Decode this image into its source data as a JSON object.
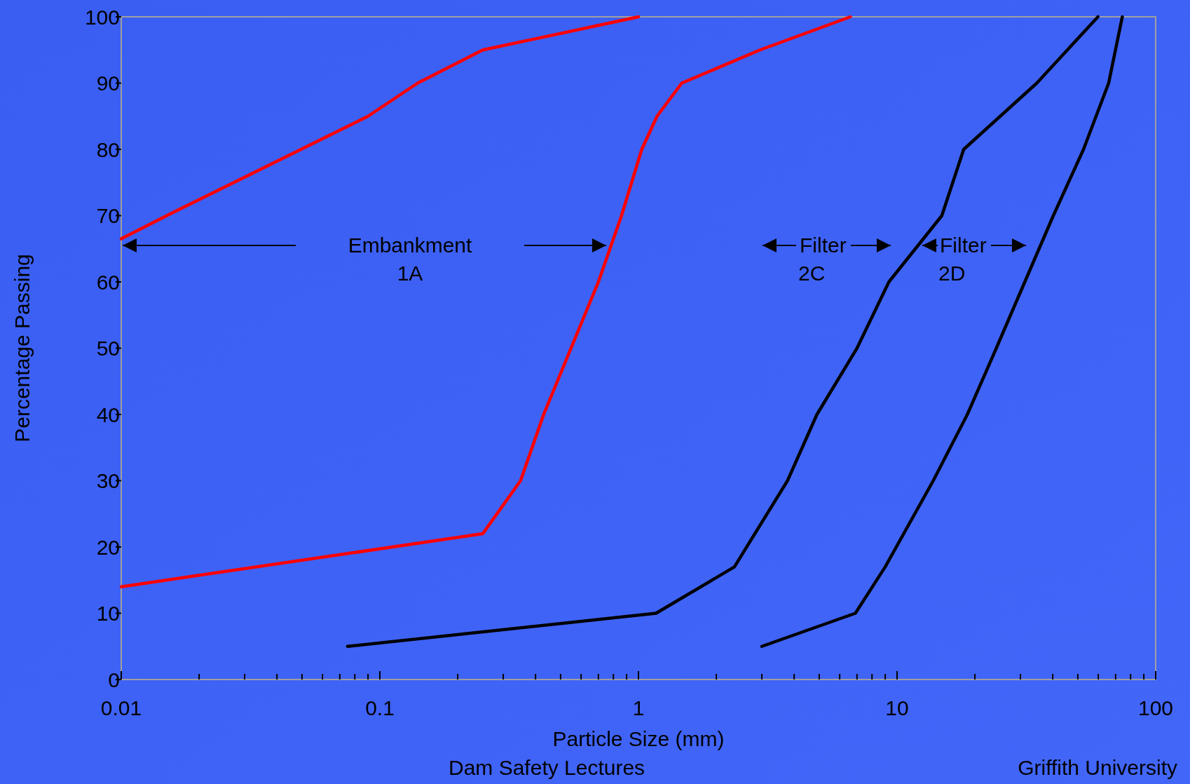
{
  "chart_data": {
    "type": "line",
    "xlabel": "Particle Size (mm)",
    "ylabel": "Percentage Passing",
    "log": "x",
    "xlim": [
      0.01,
      100
    ],
    "ylim": [
      0,
      100
    ],
    "xticks": [
      0.01,
      {
        "value": 0.02,
        "label": null
      },
      {
        "value": 0.03,
        "label": null
      },
      {
        "value": 0.04,
        "label": null
      },
      {
        "value": 0.05,
        "label": null
      },
      {
        "value": 0.06,
        "label": null
      },
      {
        "value": 0.07,
        "label": null
      },
      {
        "value": 0.08,
        "label": null
      },
      {
        "value": 0.09,
        "label": null
      },
      0.1,
      {
        "value": 0.2,
        "label": null
      },
      {
        "value": 0.3,
        "label": null
      },
      {
        "value": 0.4,
        "label": null
      },
      {
        "value": 0.5,
        "label": null
      },
      {
        "value": 0.6,
        "label": null
      },
      {
        "value": 0.7,
        "label": null
      },
      {
        "value": 0.8,
        "label": null
      },
      {
        "value": 0.9,
        "label": null
      },
      1,
      {
        "value": 2,
        "label": null
      },
      {
        "value": 3,
        "label": null
      },
      {
        "value": 4,
        "label": null
      },
      {
        "value": 5,
        "label": null
      },
      {
        "value": 6,
        "label": null
      },
      {
        "value": 7,
        "label": null
      },
      {
        "value": 8,
        "label": null
      },
      {
        "value": 9,
        "label": null
      },
      10,
      {
        "value": 20,
        "label": null
      },
      {
        "value": 30,
        "label": null
      },
      {
        "value": 40,
        "label": null
      },
      {
        "value": 50,
        "label": null
      },
      {
        "value": 60,
        "label": null
      },
      {
        "value": 70,
        "label": null
      },
      {
        "value": 80,
        "label": null
      },
      {
        "value": 90,
        "label": null
      },
      100
    ],
    "yticks": [
      0,
      10,
      20,
      30,
      40,
      50,
      60,
      70,
      80,
      90,
      100
    ],
    "grid": false,
    "marker": "none",
    "line_style": "solid",
    "series": [
      {
        "color": "#ff0000",
        "x": [
          0.01,
          0.015,
          0.09,
          0.14,
          0.25,
          1
        ],
        "values": [
          66.5,
          70,
          85,
          90,
          95,
          100
        ]
      },
      {
        "color": "#ff0000",
        "x": [
          0.01,
          0.25,
          0.35,
          0.43,
          0.7,
          0.86,
          1.03,
          1.18,
          1.47,
          2.95,
          6.6
        ],
        "values": [
          14,
          22,
          30,
          40,
          60,
          70,
          80,
          85,
          90,
          95,
          100
        ]
      },
      {
        "color": "#000000",
        "x": [
          0.075,
          1.17,
          2.35,
          3.77,
          4.9,
          7,
          9.3,
          14.9,
          18.1,
          34.7,
          59.8
        ],
        "values": [
          5,
          10,
          17,
          30,
          40,
          50,
          60,
          70,
          80,
          90,
          100
        ]
      },
      {
        "color": "#000000",
        "x": [
          3,
          6.9,
          9,
          13.8,
          18.7,
          24.2,
          40.2,
          52.6,
          65.8,
          74.3
        ],
        "values": [
          5,
          10,
          17,
          30,
          40,
          50,
          70,
          80,
          90,
          100
        ]
      }
    ],
    "annotations": [
      "Embankment\n1A",
      "Filter\n2C",
      "Filter\n2D",
      "Dam Safety Lectures",
      "Griffith University"
    ]
  }
}
